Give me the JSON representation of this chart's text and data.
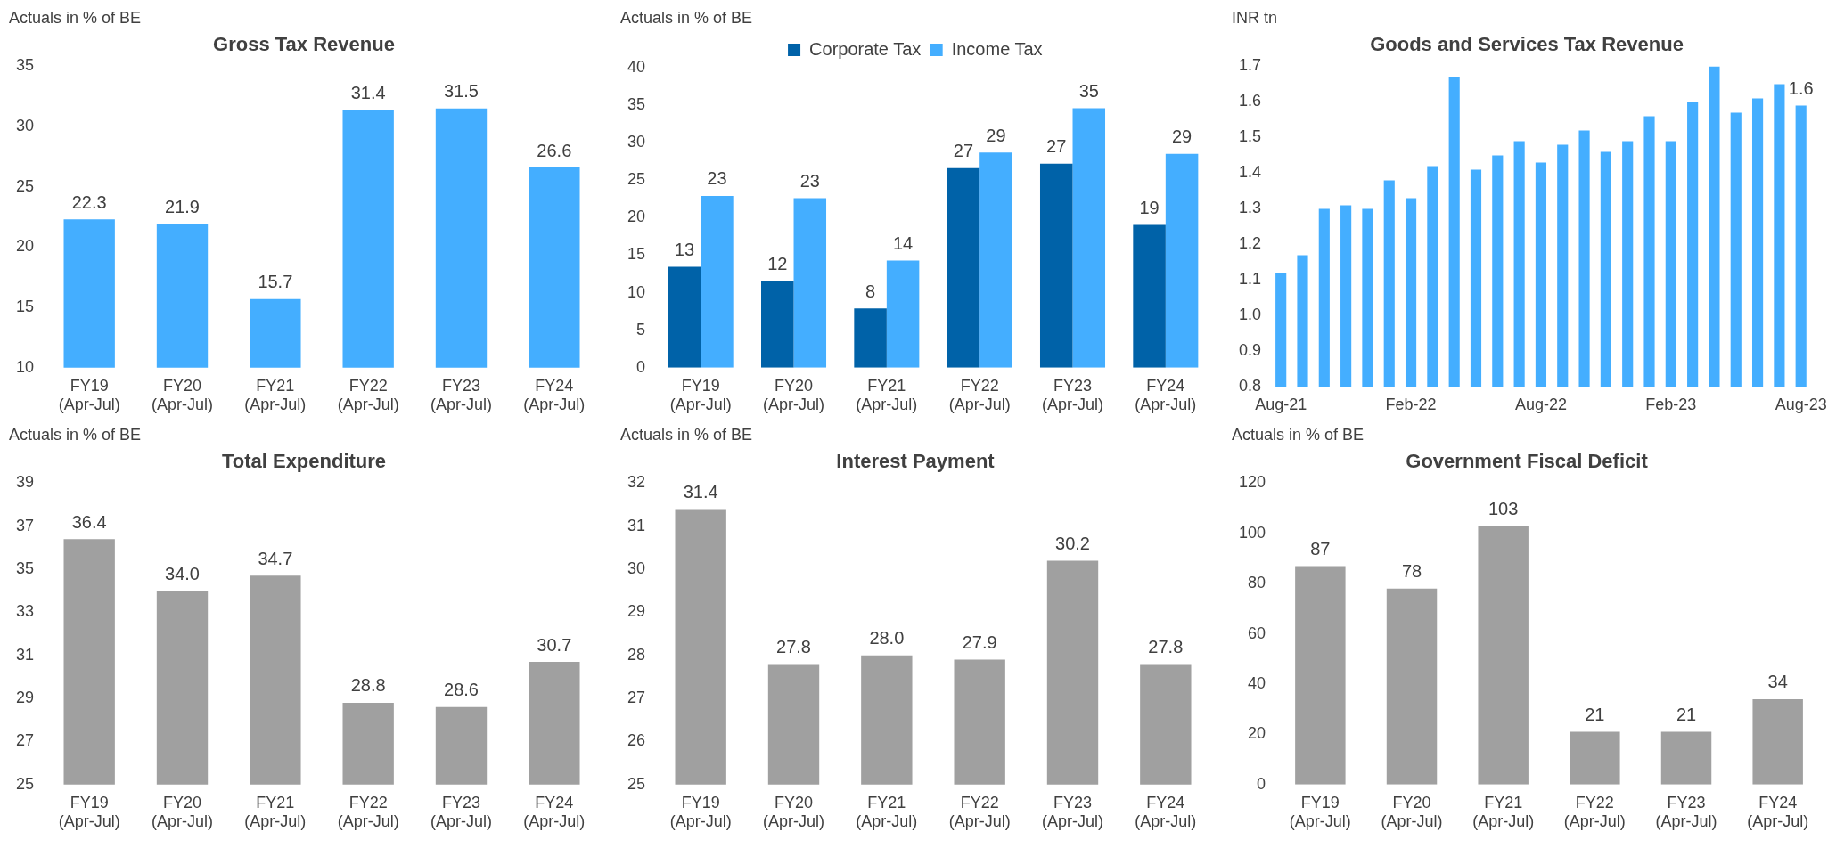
{
  "chart_data": [
    {
      "type": "bar",
      "title": "Gross Tax Revenue",
      "ylabel": "Actuals in % of BE",
      "categories": [
        "FY19 (Apr-Jul)",
        "FY20 (Apr-Jul)",
        "FY21 (Apr-Jul)",
        "FY22 (Apr-Jul)",
        "FY23 (Apr-Jul)",
        "FY24 (Apr-Jul)"
      ],
      "color": "#44aeff",
      "values": [
        22.3,
        21.9,
        15.7,
        31.4,
        31.5,
        26.6
      ],
      "value_labels": [
        "22.3",
        "21.9",
        "15.7",
        "31.4",
        "31.5",
        "26.6"
      ],
      "ylim": [
        10,
        35
      ],
      "yticks": [
        10,
        15,
        20,
        25,
        30,
        35
      ]
    },
    {
      "type": "bar",
      "ylabel": "Actuals in % of BE",
      "categories": [
        "FY19 (Apr-Jul)",
        "FY20 (Apr-Jul)",
        "FY21 (Apr-Jul)",
        "FY22 (Apr-Jul)",
        "FY23 (Apr-Jul)",
        "FY24 (Apr-Jul)"
      ],
      "legend": "top",
      "ylim": [
        0,
        40
      ],
      "yticks": [
        0,
        5,
        10,
        15,
        20,
        25,
        30,
        35,
        40
      ],
      "series": [
        {
          "name": "Corporate Tax",
          "color": "#0062a8",
          "values": [
            13.45,
            11.5,
            7.9,
            26.6,
            27.2,
            19.05
          ],
          "value_labels": [
            "13",
            "12",
            "8",
            "27",
            "27",
            "19"
          ]
        },
        {
          "name": "Income Tax",
          "color": "#44aeff",
          "values": [
            22.9,
            22.6,
            14.3,
            28.7,
            34.6,
            28.5
          ],
          "value_labels": [
            "23",
            "23",
            "14",
            "29",
            "35",
            "29"
          ]
        }
      ]
    },
    {
      "type": "bar",
      "title": "Goods and Services Tax Revenue",
      "ylabel": "INR tn",
      "categories": [
        "Aug-21",
        null,
        null,
        null,
        null,
        null,
        "Feb-22",
        null,
        null,
        null,
        null,
        null,
        "Aug-22",
        null,
        null,
        null,
        null,
        null,
        "Feb-23",
        null,
        null,
        null,
        null,
        null,
        "Aug-23"
      ],
      "color": "#44aeff",
      "values": [
        1.12,
        1.17,
        1.3,
        1.31,
        1.3,
        1.38,
        1.33,
        1.42,
        1.67,
        1.41,
        1.45,
        1.49,
        1.43,
        1.48,
        1.52,
        1.46,
        1.49,
        1.56,
        1.49,
        1.6,
        1.7,
        1.57,
        1.61,
        1.65,
        1.59
      ],
      "value_labels": [
        null,
        null,
        null,
        null,
        null,
        null,
        null,
        null,
        null,
        null,
        null,
        null,
        null,
        null,
        null,
        null,
        null,
        null,
        null,
        null,
        null,
        null,
        null,
        null,
        "1.6"
      ],
      "ylim": [
        0.8,
        1.7
      ],
      "yticks": [
        0.8,
        0.9,
        {
          "value": 1,
          "label": "1.0"
        },
        1.1,
        1.2,
        1.3,
        1.4,
        1.5,
        1.6,
        1.7
      ]
    },
    {
      "type": "bar",
      "title": "Total Expenditure",
      "ylabel": "Actuals in % of BE",
      "categories": [
        "FY19 (Apr-Jul)",
        "FY20 (Apr-Jul)",
        "FY21 (Apr-Jul)",
        "FY22 (Apr-Jul)",
        "FY23 (Apr-Jul)",
        "FY24 (Apr-Jul)"
      ],
      "color": "#a0a0a0",
      "values": [
        36.4,
        34.0,
        34.7,
        28.8,
        28.6,
        30.7
      ],
      "value_labels": [
        "36.4",
        "34.0",
        "34.7",
        "28.8",
        "28.6",
        "30.7"
      ],
      "ylim": [
        25,
        39
      ],
      "yticks": [
        25,
        27,
        29,
        31,
        33,
        35,
        37,
        39
      ]
    },
    {
      "type": "bar",
      "title": "Interest Payment",
      "ylabel": "Actuals in % of BE",
      "categories": [
        "FY19 (Apr-Jul)",
        "FY20 (Apr-Jul)",
        "FY21 (Apr-Jul)",
        "FY22 (Apr-Jul)",
        "FY23 (Apr-Jul)",
        "FY24 (Apr-Jul)"
      ],
      "color": "#a0a0a0",
      "values": [
        31.4,
        27.8,
        28.0,
        27.9,
        30.2,
        27.8
      ],
      "value_labels": [
        "31.4",
        "27.8",
        "28.0",
        "27.9",
        "30.2",
        "27.8"
      ],
      "ylim": [
        25,
        32
      ],
      "yticks": [
        25,
        26,
        27,
        28,
        29,
        30,
        31,
        32
      ]
    },
    {
      "type": "bar",
      "title": "Government Fiscal Deficit",
      "ylabel": "Actuals in % of BE",
      "categories": [
        "FY19 (Apr-Jul)",
        "FY20 (Apr-Jul)",
        "FY21 (Apr-Jul)",
        "FY22 (Apr-Jul)",
        "FY23 (Apr-Jul)",
        "FY24 (Apr-Jul)"
      ],
      "color": "#a0a0a0",
      "values": [
        87,
        78,
        103,
        21,
        21,
        34
      ],
      "data_labels": true,
      "ylim": [
        0,
        120
      ],
      "yticks": [
        0,
        20,
        40,
        60,
        80,
        100,
        120
      ]
    }
  ]
}
